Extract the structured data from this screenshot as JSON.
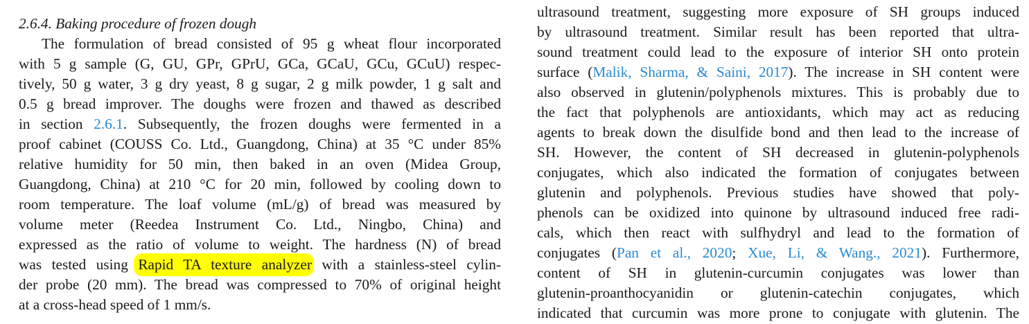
{
  "colors": {
    "text": "#1a1a1a",
    "link": "#2a8ad0",
    "highlight": "#ffff00"
  },
  "left_column": {
    "heading": "2.6.4.  Baking procedure of frozen dough",
    "lines": [
      [
        {
          "t": "The formulation of bread consisted of 95 g wheat flour incorporated"
        }
      ],
      [
        {
          "t": "with 5 g sample (G, GU, GPr, GPrU, GCa, GCaU, GCu, GCuU) respec-"
        }
      ],
      [
        {
          "t": "tively, 50 g water, 3 g dry yeast, 8 g sugar, 2 g milk powder, 1 g salt and"
        }
      ],
      [
        {
          "t": "0.5 g bread improver. The doughs were frozen and thawed as described"
        }
      ],
      [
        {
          "t": "in section "
        },
        {
          "t": "2.6.1",
          "k": "link"
        },
        {
          "t": ". Subsequently, the frozen doughs were fermented in a"
        }
      ],
      [
        {
          "t": "proof cabinet (COUSS Co. Ltd., Guangdong, China) at 35 °C under 85%"
        }
      ],
      [
        {
          "t": "relative humidity for 50 min, then baked in an oven (Midea Group,"
        }
      ],
      [
        {
          "t": "Guangdong, China) at 210 °C for 20 min, followed by cooling down to"
        }
      ],
      [
        {
          "t": "room temperature. The loaf volume (mL/g) of bread was measured by"
        }
      ],
      [
        {
          "t": "volume meter (Reedea Instrument Co. Ltd., Ningbo, China) and"
        }
      ],
      [
        {
          "t": "expressed as the ratio of volume to weight. The hardness (N) of bread"
        }
      ],
      [
        {
          "t": "was tested using "
        },
        {
          "t": "Rapid TA texture analyzer",
          "k": "hl"
        },
        {
          "t": " with a stainless-steel cylin-"
        }
      ],
      [
        {
          "t": "der probe (20 mm). The bread was compressed to 70% of original height"
        }
      ],
      [
        {
          "t": "at a cross-head speed of 1 mm/s."
        }
      ]
    ]
  },
  "right_column": {
    "lines": [
      [
        {
          "t": "ultrasound treatment, suggesting more exposure of SH groups induced"
        }
      ],
      [
        {
          "t": "by ultrasound treatment. Similar result has been reported that ultra-"
        }
      ],
      [
        {
          "t": "sound treatment could lead to the exposure of interior SH onto protein"
        }
      ],
      [
        {
          "t": "surface ("
        },
        {
          "t": "Malik, Sharma, & Saini, 2017",
          "k": "link"
        },
        {
          "t": "). The increase in SH content were"
        }
      ],
      [
        {
          "t": "also observed in glutenin/polyphenols mixtures. This is probably due to"
        }
      ],
      [
        {
          "t": "the fact that polyphenols are antioxidants, which may act as reducing"
        }
      ],
      [
        {
          "t": "agents to break down the disulfide bond and then lead to the increase of"
        }
      ],
      [
        {
          "t": "SH. However, the content of SH decreased in glutenin-polyphenols"
        }
      ],
      [
        {
          "t": "conjugates, which also indicated the formation of conjugates between"
        }
      ],
      [
        {
          "t": "glutenin and polyphenols. Previous studies have showed that poly-"
        }
      ],
      [
        {
          "t": "phenols can be oxidized into quinone by ultrasound induced free radi-"
        }
      ],
      [
        {
          "t": "cals, which then react with sulfhydryl and lead to the formation of"
        }
      ],
      [
        {
          "t": "conjugates ("
        },
        {
          "t": "Pan et al., 2020",
          "k": "link"
        },
        {
          "t": "; "
        },
        {
          "t": "Xue, Li, & Wang., 2021",
          "k": "link"
        },
        {
          "t": "). Furthermore,"
        }
      ],
      [
        {
          "t": "content of SH in glutenin-curcumin conjugates was lower than"
        }
      ],
      [
        {
          "t": "glutenin-proanthocyanidin or glutenin-catechin conjugates, which"
        }
      ],
      [
        {
          "t": "indicated that curcumin was more prone to conjugate with glutenin. The"
        }
      ]
    ]
  }
}
